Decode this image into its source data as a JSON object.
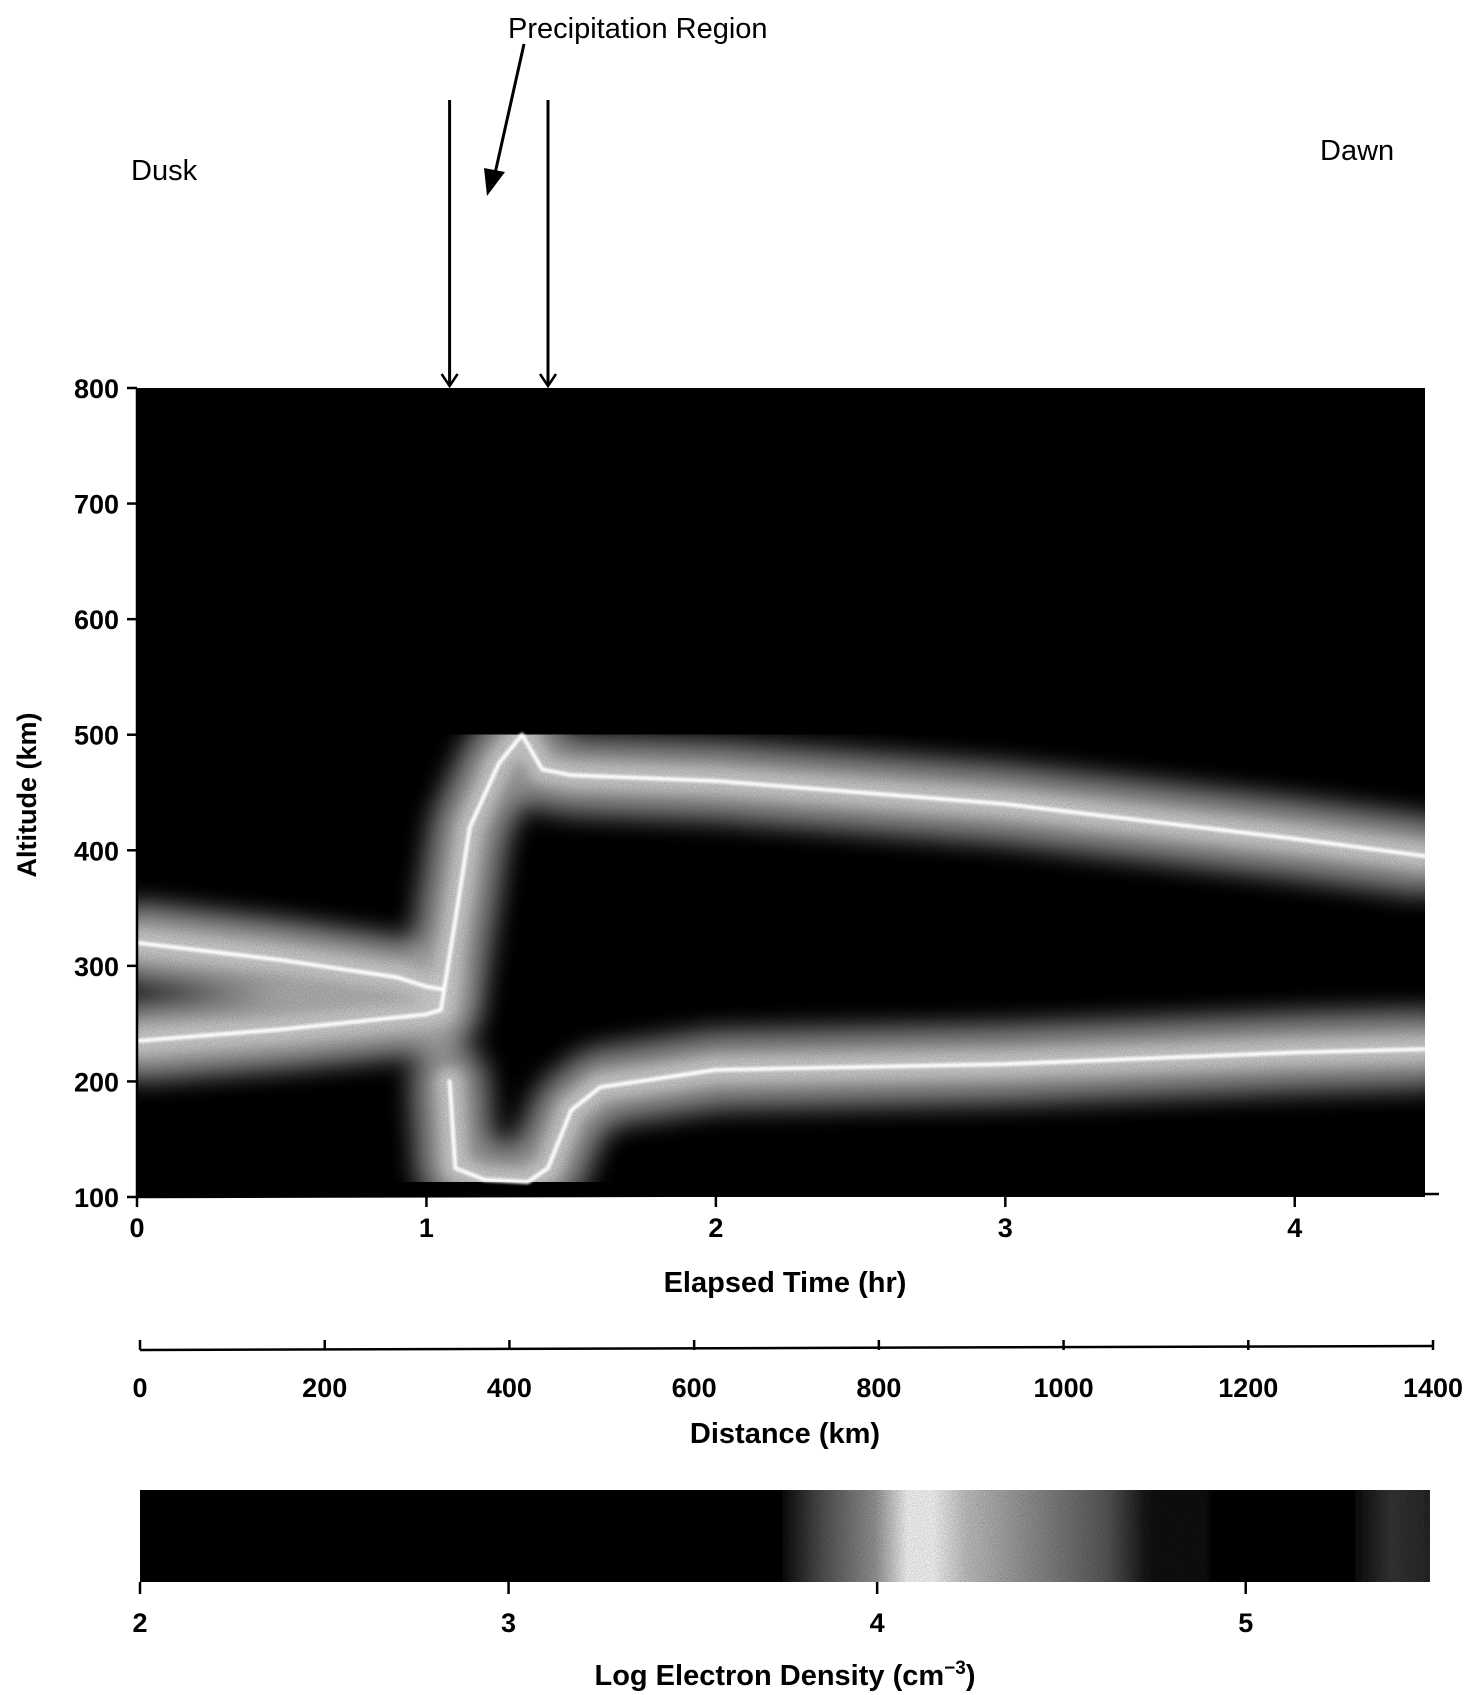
{
  "annotations": {
    "precipitation_label": "Precipitation Region",
    "dusk_label": "Dusk",
    "dawn_label": "Dawn"
  },
  "chart_data": [
    {
      "type": "heatmap",
      "title": "",
      "xlabel": "Elapsed Time (hr)",
      "ylabel": "Altitude (km)",
      "xlim": [
        0,
        4.45
      ],
      "ylim": [
        100,
        800
      ],
      "x_ticks": [
        0,
        1,
        2,
        3,
        4
      ],
      "y_ticks": [
        100,
        200,
        300,
        400,
        500,
        600,
        700,
        800
      ],
      "second_x_axis": {
        "label": "Distance (km)",
        "range": [
          0,
          1400
        ],
        "ticks": [
          0,
          200,
          400,
          600,
          800,
          1000,
          1200,
          1400
        ]
      },
      "precipitation_region_hr": [
        1.08,
        1.42
      ],
      "ridges": [
        {
          "x": [
            0,
            0.5,
            0.9,
            1.0,
            1.05
          ],
          "y": [
            320,
            305,
            290,
            282,
            280
          ]
        },
        {
          "x": [
            0,
            0.5,
            1.0,
            1.05
          ],
          "y": [
            235,
            245,
            258,
            262
          ]
        },
        {
          "x": [
            1.05,
            1.1,
            1.15,
            1.25,
            1.33,
            1.4,
            1.5,
            2.0,
            3.0,
            4.0,
            4.45
          ],
          "y": [
            262,
            340,
            420,
            475,
            500,
            470,
            465,
            460,
            440,
            410,
            395
          ]
        },
        {
          "x": [
            1.08,
            1.1,
            1.2,
            1.35,
            1.42,
            1.5,
            1.6,
            2.0,
            3.0,
            4.0,
            4.45
          ],
          "y": [
            200,
            125,
            115,
            113,
            125,
            175,
            195,
            210,
            215,
            225,
            228
          ]
        }
      ],
      "grid": false
    },
    {
      "type": "colorbar",
      "xlabel": "Log Electron Density (cm",
      "xlabel_superscript": "−3",
      "xlabel_suffix": ")",
      "range": [
        2,
        5.5
      ],
      "ticks": [
        2,
        3,
        4,
        5
      ]
    }
  ]
}
